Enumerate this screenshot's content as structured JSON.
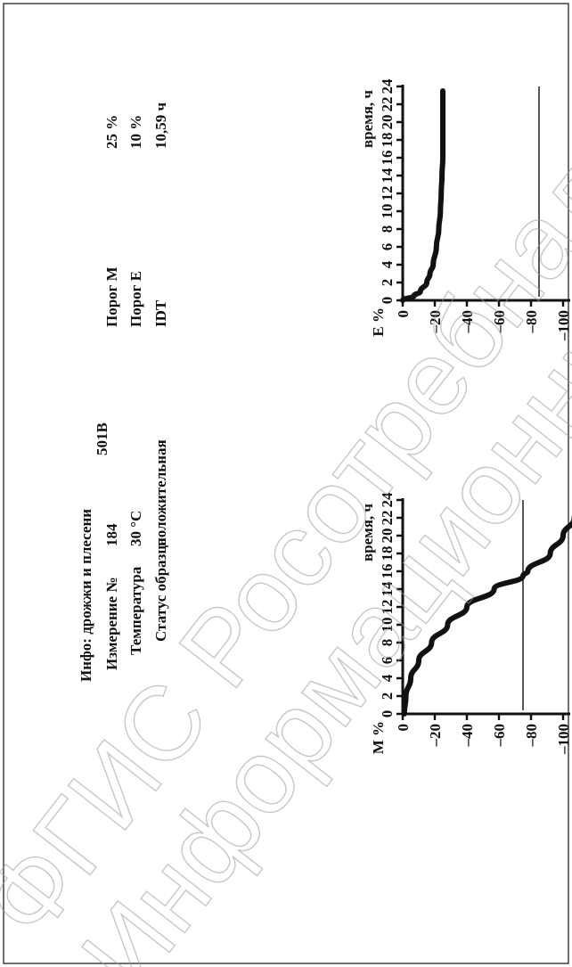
{
  "report": {
    "code": "501B",
    "info_rows": [
      {
        "label": "Инфо: дрожжи и плесени",
        "value": ""
      },
      {
        "label": "Измерение №",
        "value": "184"
      },
      {
        "label": "Температура",
        "value": "30 °C"
      },
      {
        "label": "Статус образца",
        "value": "положительная"
      }
    ],
    "threshold_rows": [
      {
        "label": "Порог M",
        "value": "25 %"
      },
      {
        "label": "Порог E",
        "value": "10 %"
      },
      {
        "label": "IDT",
        "value": "10,59 ч"
      }
    ]
  },
  "watermark": {
    "lines": [
      "ФГИС Росотребнадзор",
      "Информационный ресурс"
    ],
    "color": "#9a9a9a"
  },
  "chart_data": [
    {
      "type": "line",
      "id": "m-chart",
      "ylabel": "M %",
      "xlabel": "время, ч",
      "xlim": [
        0,
        24
      ],
      "ylim": [
        -100,
        0
      ],
      "x_ticks": [
        0,
        2,
        4,
        6,
        8,
        10,
        12,
        14,
        16,
        18,
        20,
        22,
        24
      ],
      "y_ticks": [
        0,
        -20,
        -40,
        -60,
        -80,
        -100
      ],
      "y_tick_labels": [
        "0",
        "–20",
        "–40",
        "–60",
        "–80",
        "–100"
      ],
      "threshold_line": -75,
      "series": [
        {
          "x": [
            0,
            2,
            4,
            6,
            8,
            10,
            12,
            14,
            15.5,
            16,
            18,
            20,
            22,
            23.5
          ],
          "y": [
            -1,
            -2,
            -5,
            -10,
            -18,
            -28,
            -40,
            -57,
            -75,
            -78,
            -92,
            -100,
            -107,
            -110
          ]
        }
      ]
    },
    {
      "type": "line",
      "id": "e-chart",
      "ylabel": "E %",
      "xlabel": "время, ч",
      "xlim": [
        0,
        24
      ],
      "ylim": [
        -100,
        0
      ],
      "x_ticks": [
        0,
        2,
        4,
        6,
        8,
        10,
        12,
        14,
        16,
        18,
        20,
        22,
        24
      ],
      "y_ticks": [
        0,
        -20,
        -40,
        -60,
        -80,
        -100
      ],
      "y_tick_labels": [
        "0",
        "–20",
        "–40",
        "–60",
        "–80",
        "–100"
      ],
      "threshold_line": -85,
      "series": [
        {
          "x": [
            0,
            0.5,
            1,
            2,
            3,
            4,
            6,
            8,
            10,
            12,
            14,
            16,
            18,
            20,
            22,
            23.5
          ],
          "y": [
            0,
            -7,
            -11,
            -15,
            -17,
            -19,
            -21,
            -22.5,
            -23.5,
            -24,
            -24.5,
            -25,
            -25,
            -25,
            -25,
            -25
          ]
        }
      ]
    }
  ]
}
